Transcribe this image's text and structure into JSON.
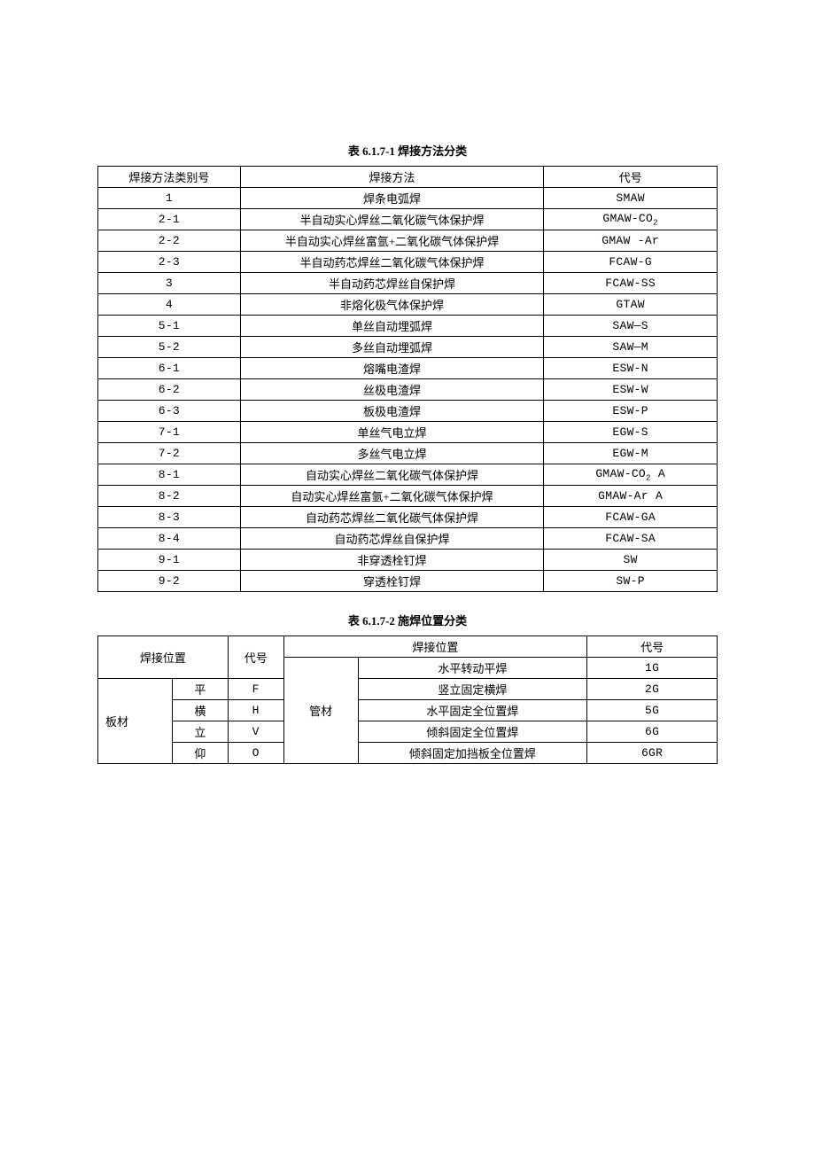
{
  "table1": {
    "title": "表 6.1.7-1   焊接方法分类",
    "headers": {
      "col1": "焊接方法类别号",
      "col2": "焊接方法",
      "col3": "代号"
    },
    "rows": [
      {
        "id": "1",
        "method": "焊条电弧焊",
        "code": "SMAW"
      },
      {
        "id": "2-1",
        "method": "半自动实心焊丝二氧化碳气体保护焊",
        "code": "GMAW-CO",
        "sub": "2"
      },
      {
        "id": "2-2",
        "method": "半自动实心焊丝富氩+二氧化碳气体保护焊",
        "code": "GMAW -Ar"
      },
      {
        "id": "2-3",
        "method": "半自动药芯焊丝二氧化碳气体保护焊",
        "code": "FCAW-G"
      },
      {
        "id": "3",
        "method": "半自动药芯焊丝自保护焊",
        "code": "FCAW-SS"
      },
      {
        "id": "4",
        "method": "非熔化极气体保护焊",
        "code": "GTAW"
      },
      {
        "id": "5-1",
        "method": "单丝自动埋弧焊",
        "code": "SAW—S"
      },
      {
        "id": "5-2",
        "method": "多丝自动埋弧焊",
        "code": "SAW—M"
      },
      {
        "id": "6-1",
        "method": "熔嘴电渣焊",
        "code": "ESW-N"
      },
      {
        "id": "6-2",
        "method": "丝极电渣焊",
        "code": "ESW-W"
      },
      {
        "id": "6-3",
        "method": "板极电渣焊",
        "code": "ESW-P"
      },
      {
        "id": "7-1",
        "method": "单丝气电立焊",
        "code": "EGW-S"
      },
      {
        "id": "7-2",
        "method": "多丝气电立焊",
        "code": "EGW-M"
      },
      {
        "id": "8-1",
        "method": "自动实心焊丝二氧化碳气体保护焊",
        "code": "GMAW-CO",
        "sub": "2",
        "tail": " A"
      },
      {
        "id": "8-2",
        "method": "自动实心焊丝富氩+二氧化碳气体保护焊",
        "code": "GMAW-Ar A"
      },
      {
        "id": "8-3",
        "method": "自动药芯焊丝二氧化碳气体保护焊",
        "code": "FCAW-GA"
      },
      {
        "id": "8-4",
        "method": "自动药芯焊丝自保护焊",
        "code": "FCAW-SA"
      },
      {
        "id": "9-1",
        "method": "非穿透栓钉焊",
        "code": "SW"
      },
      {
        "id": "9-2",
        "method": "穿透栓钉焊",
        "code": "SW-P"
      }
    ]
  },
  "table2": {
    "title": "表 6.1.7-2   施焊位置分类",
    "headers": {
      "left_pos": "焊接位置",
      "left_code": "代号",
      "right_pos": "焊接位置",
      "right_code": "代号"
    },
    "left_material": "板材",
    "right_material": "管材",
    "left_rows": [
      {
        "pos": "平",
        "code": "F"
      },
      {
        "pos": "横",
        "code": "H"
      },
      {
        "pos": "立",
        "code": "V"
      },
      {
        "pos": "仰",
        "code": "O"
      }
    ],
    "right_rows": [
      {
        "desc": "水平转动平焊",
        "code": "1G"
      },
      {
        "desc": "竖立固定横焊",
        "code": "2G"
      },
      {
        "desc": "水平固定全位置焊",
        "code": "5G"
      },
      {
        "desc": "倾斜固定全位置焊",
        "code": "6G"
      },
      {
        "desc": "倾斜固定加挡板全位置焊",
        "code": "6GR"
      }
    ]
  }
}
